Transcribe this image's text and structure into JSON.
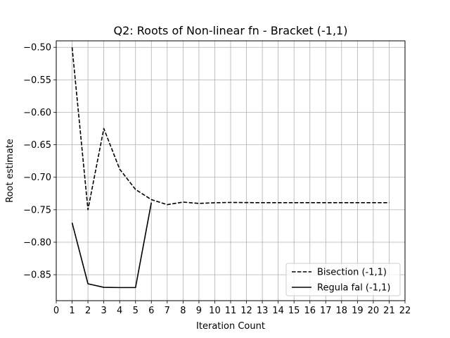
{
  "chart_data": {
    "type": "line",
    "title": "Q2: Roots of Non-linear fn - Bracket (-1,1)",
    "xlabel": "Iteration Count",
    "ylabel": "Root estimate",
    "xlim": [
      0,
      22
    ],
    "ylim": [
      -0.89,
      -0.49
    ],
    "xticks": [
      0,
      1,
      2,
      3,
      4,
      5,
      6,
      7,
      8,
      9,
      10,
      11,
      12,
      13,
      14,
      15,
      16,
      17,
      18,
      19,
      20,
      21,
      22
    ],
    "yticks": [
      -0.5,
      -0.55,
      -0.6,
      -0.65,
      -0.7,
      -0.75,
      -0.8,
      -0.85
    ],
    "ytick_labels": [
      "−0.50",
      "−0.55",
      "−0.60",
      "−0.65",
      "−0.70",
      "−0.75",
      "−0.80",
      "−0.85"
    ],
    "grid": true,
    "legend_position": "lower-right",
    "series": [
      {
        "name": "Bisection  (-1,1)",
        "style": "dashed",
        "color": "#000000",
        "x": [
          1,
          2,
          3,
          4,
          5,
          6,
          7,
          8,
          9,
          10,
          11,
          12,
          13,
          14,
          15,
          16,
          17,
          18,
          19,
          20,
          21
        ],
        "y": [
          -0.5,
          -0.75,
          -0.625,
          -0.6875,
          -0.71875,
          -0.734375,
          -0.7421875,
          -0.73828,
          -0.74023,
          -0.73926,
          -0.73877,
          -0.73901,
          -0.73914,
          -0.73907,
          -0.73911,
          -0.73909,
          -0.73908,
          -0.73909,
          -0.73908,
          -0.73908,
          -0.73908
        ]
      },
      {
        "name": "Regula fal (-1,1)",
        "style": "solid",
        "color": "#000000",
        "x": [
          1,
          2,
          3,
          4,
          5,
          6
        ],
        "y": [
          -0.77,
          -0.864,
          -0.8695,
          -0.8698,
          -0.8698,
          -0.739
        ]
      }
    ]
  }
}
